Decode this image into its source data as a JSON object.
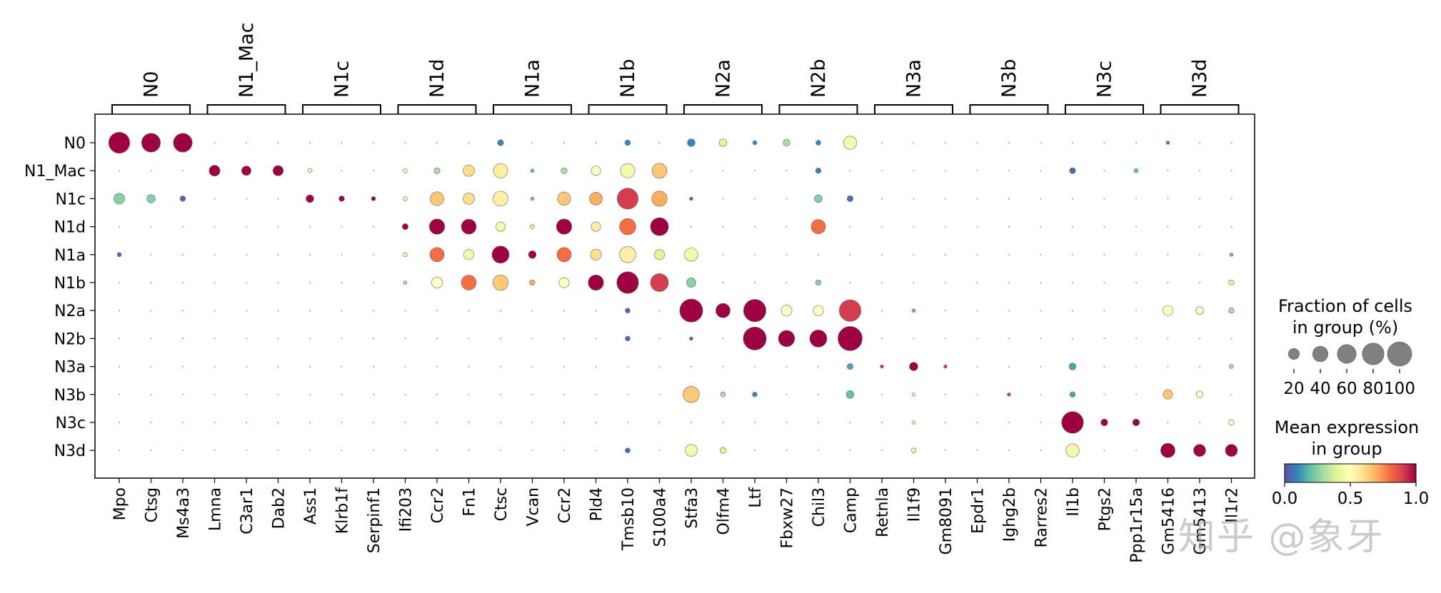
{
  "chart_data": {
    "type": "dotplot",
    "groups": [
      "N0",
      "N1_Mac",
      "N1c",
      "N1d",
      "N1a",
      "N1b",
      "N2a",
      "N2b",
      "N3a",
      "N3b",
      "N3c",
      "N3d"
    ],
    "genes": [
      "Mpo",
      "Ctsg",
      "Ms4a3",
      "Lmna",
      "C3ar1",
      "Dab2",
      "Ass1",
      "Klrb1f",
      "Serpinf1",
      "Ifi203",
      "Ccr2",
      "Fn1",
      "Ctsc",
      "Vcan",
      "Ccr2",
      "Pld4",
      "Tmsb10",
      "S100a4",
      "Stfa3",
      "Olfm4",
      "Ltf",
      "Fbxw27",
      "Chil3",
      "Camp",
      "Retnla",
      "Il1f9",
      "Gm8091",
      "Epdr1",
      "Ighg2b",
      "Rarres2",
      "Il1b",
      "Ptgs2",
      "Ppp1r15a",
      "Gm5416",
      "Gm5413",
      "Il1r2"
    ],
    "gene_blocks": [
      {
        "label": "N0",
        "start": 0,
        "end": 2
      },
      {
        "label": "N1_Mac",
        "start": 3,
        "end": 5
      },
      {
        "label": "N1c",
        "start": 6,
        "end": 8
      },
      {
        "label": "N1d",
        "start": 9,
        "end": 11
      },
      {
        "label": "N1a",
        "start": 12,
        "end": 14
      },
      {
        "label": "N1b",
        "start": 15,
        "end": 17
      },
      {
        "label": "N2a",
        "start": 18,
        "end": 20
      },
      {
        "label": "N2b",
        "start": 21,
        "end": 23
      },
      {
        "label": "N3a",
        "start": 24,
        "end": 26
      },
      {
        "label": "N3b",
        "start": 27,
        "end": 29
      },
      {
        "label": "N3c",
        "start": 30,
        "end": 32
      },
      {
        "label": "N3d",
        "start": 33,
        "end": 35
      }
    ],
    "points": [
      {
        "g": 0,
        "r": 0,
        "f": 75,
        "m": 1.0
      },
      {
        "g": 1,
        "r": 0,
        "f": 60,
        "m": 1.0
      },
      {
        "g": 2,
        "r": 0,
        "f": 60,
        "m": 1.0
      },
      {
        "g": 12,
        "r": 0,
        "f": 6,
        "m": 0.1
      },
      {
        "g": 16,
        "r": 0,
        "f": 5,
        "m": 0.1
      },
      {
        "g": 18,
        "r": 0,
        "f": 10,
        "m": 0.1
      },
      {
        "g": 19,
        "r": 0,
        "f": 10,
        "m": 0.4
      },
      {
        "g": 20,
        "r": 0,
        "f": 3,
        "m": 0.1
      },
      {
        "g": 21,
        "r": 0,
        "f": 8,
        "m": 0.3
      },
      {
        "g": 22,
        "r": 0,
        "f": 4,
        "m": 0.1
      },
      {
        "g": 23,
        "r": 0,
        "f": 30,
        "m": 0.45
      },
      {
        "g": 33,
        "r": 0,
        "f": 2,
        "m": 0.1
      },
      {
        "g": 3,
        "r": 1,
        "f": 20,
        "m": 1.0
      },
      {
        "g": 4,
        "r": 1,
        "f": 15,
        "m": 1.0
      },
      {
        "g": 5,
        "r": 1,
        "f": 18,
        "m": 1.0
      },
      {
        "g": 6,
        "r": 1,
        "f": 3,
        "m": 0.45
      },
      {
        "g": 9,
        "r": 1,
        "f": 3,
        "m": 0.45
      },
      {
        "g": 10,
        "r": 1,
        "f": 6,
        "m": 0.3
      },
      {
        "g": 11,
        "r": 1,
        "f": 22,
        "m": 0.6
      },
      {
        "g": 12,
        "r": 1,
        "f": 35,
        "m": 0.55
      },
      {
        "g": 13,
        "r": 1,
        "f": 2,
        "m": 0.2
      },
      {
        "g": 14,
        "r": 1,
        "f": 6,
        "m": 0.3
      },
      {
        "g": 15,
        "r": 1,
        "f": 15,
        "m": 0.5
      },
      {
        "g": 16,
        "r": 1,
        "f": 35,
        "m": 0.45
      },
      {
        "g": 17,
        "r": 1,
        "f": 38,
        "m": 0.65
      },
      {
        "g": 22,
        "r": 1,
        "f": 5,
        "m": 0.1
      },
      {
        "g": 30,
        "r": 1,
        "f": 6,
        "m": 0.05
      },
      {
        "g": 32,
        "r": 1,
        "f": 3,
        "m": 0.2
      },
      {
        "g": 0,
        "r": 2,
        "f": 20,
        "m": 0.25
      },
      {
        "g": 1,
        "r": 2,
        "f": 12,
        "m": 0.25
      },
      {
        "g": 2,
        "r": 2,
        "f": 5,
        "m": 0.05
      },
      {
        "g": 6,
        "r": 2,
        "f": 10,
        "m": 1.0
      },
      {
        "g": 7,
        "r": 2,
        "f": 5,
        "m": 1.0
      },
      {
        "g": 8,
        "r": 2,
        "f": 3,
        "m": 1.0
      },
      {
        "g": 9,
        "r": 2,
        "f": 3,
        "m": 0.45
      },
      {
        "g": 10,
        "r": 2,
        "f": 32,
        "m": 0.65
      },
      {
        "g": 11,
        "r": 2,
        "f": 22,
        "m": 0.6
      },
      {
        "g": 12,
        "r": 2,
        "f": 38,
        "m": 0.55
      },
      {
        "g": 13,
        "r": 2,
        "f": 2,
        "m": 0.2
      },
      {
        "g": 14,
        "r": 2,
        "f": 30,
        "m": 0.65
      },
      {
        "g": 15,
        "r": 2,
        "f": 28,
        "m": 0.7
      },
      {
        "g": 16,
        "r": 2,
        "f": 75,
        "m": 0.9
      },
      {
        "g": 17,
        "r": 2,
        "f": 40,
        "m": 0.7
      },
      {
        "g": 18,
        "r": 2,
        "f": 2,
        "m": 0.05
      },
      {
        "g": 22,
        "r": 2,
        "f": 10,
        "m": 0.25
      },
      {
        "g": 23,
        "r": 2,
        "f": 6,
        "m": 0.05
      },
      {
        "g": 9,
        "r": 3,
        "f": 6,
        "m": 1.0
      },
      {
        "g": 10,
        "r": 3,
        "f": 40,
        "m": 1.0
      },
      {
        "g": 11,
        "r": 3,
        "f": 38,
        "m": 1.0
      },
      {
        "g": 12,
        "r": 3,
        "f": 15,
        "m": 0.45
      },
      {
        "g": 13,
        "r": 3,
        "f": 3,
        "m": 0.4
      },
      {
        "g": 14,
        "r": 3,
        "f": 40,
        "m": 1.0
      },
      {
        "g": 15,
        "r": 3,
        "f": 15,
        "m": 0.55
      },
      {
        "g": 16,
        "r": 3,
        "f": 45,
        "m": 0.8
      },
      {
        "g": 17,
        "r": 3,
        "f": 55,
        "m": 1.0
      },
      {
        "g": 22,
        "r": 3,
        "f": 35,
        "m": 0.8
      },
      {
        "g": 0,
        "r": 4,
        "f": 3,
        "m": 0.05
      },
      {
        "g": 9,
        "r": 4,
        "f": 3,
        "m": 0.45
      },
      {
        "g": 10,
        "r": 4,
        "f": 35,
        "m": 0.8
      },
      {
        "g": 11,
        "r": 4,
        "f": 18,
        "m": 0.45
      },
      {
        "g": 12,
        "r": 4,
        "f": 50,
        "m": 1.0
      },
      {
        "g": 13,
        "r": 4,
        "f": 10,
        "m": 1.0
      },
      {
        "g": 14,
        "r": 4,
        "f": 35,
        "m": 0.8
      },
      {
        "g": 15,
        "r": 4,
        "f": 20,
        "m": 0.6
      },
      {
        "g": 16,
        "r": 4,
        "f": 45,
        "m": 0.55
      },
      {
        "g": 17,
        "r": 4,
        "f": 18,
        "m": 0.4
      },
      {
        "g": 18,
        "r": 4,
        "f": 30,
        "m": 0.45
      },
      {
        "g": 35,
        "r": 4,
        "f": 2,
        "m": 0.2
      },
      {
        "g": 9,
        "r": 5,
        "f": 2,
        "m": 0.3
      },
      {
        "g": 10,
        "r": 5,
        "f": 20,
        "m": 0.5
      },
      {
        "g": 11,
        "r": 5,
        "f": 38,
        "m": 0.8
      },
      {
        "g": 12,
        "r": 5,
        "f": 40,
        "m": 0.65
      },
      {
        "g": 13,
        "r": 5,
        "f": 5,
        "m": 0.7
      },
      {
        "g": 14,
        "r": 5,
        "f": 18,
        "m": 0.5
      },
      {
        "g": 15,
        "r": 5,
        "f": 40,
        "m": 1.0
      },
      {
        "g": 16,
        "r": 5,
        "f": 80,
        "m": 1.0
      },
      {
        "g": 17,
        "r": 5,
        "f": 55,
        "m": 0.9
      },
      {
        "g": 18,
        "r": 5,
        "f": 15,
        "m": 0.25
      },
      {
        "g": 22,
        "r": 5,
        "f": 5,
        "m": 0.25
      },
      {
        "g": 35,
        "r": 5,
        "f": 5,
        "m": 0.4
      },
      {
        "g": 18,
        "r": 6,
        "f": 90,
        "m": 1.0
      },
      {
        "g": 19,
        "r": 6,
        "f": 35,
        "m": 1.0
      },
      {
        "g": 20,
        "r": 6,
        "f": 85,
        "m": 1.0
      },
      {
        "g": 21,
        "r": 6,
        "f": 20,
        "m": 0.5
      },
      {
        "g": 22,
        "r": 6,
        "f": 18,
        "m": 0.5
      },
      {
        "g": 23,
        "r": 6,
        "f": 80,
        "m": 0.9
      },
      {
        "g": 16,
        "r": 6,
        "f": 4,
        "m": 0.05
      },
      {
        "g": 33,
        "r": 6,
        "f": 18,
        "m": 0.5
      },
      {
        "g": 34,
        "r": 6,
        "f": 10,
        "m": 0.5
      },
      {
        "g": 35,
        "r": 6,
        "f": 5,
        "m": 0.3
      },
      {
        "g": 25,
        "r": 6,
        "f": 2,
        "m": 0.2
      },
      {
        "g": 20,
        "r": 7,
        "f": 90,
        "m": 1.0
      },
      {
        "g": 21,
        "r": 7,
        "f": 45,
        "m": 1.0
      },
      {
        "g": 22,
        "r": 7,
        "f": 50,
        "m": 1.0
      },
      {
        "g": 23,
        "r": 7,
        "f": 100,
        "m": 1.0
      },
      {
        "g": 16,
        "r": 7,
        "f": 4,
        "m": 0.05
      },
      {
        "g": 18,
        "r": 7,
        "f": 2,
        "m": 0.05
      },
      {
        "g": 24,
        "r": 8,
        "f": 2,
        "m": 0.9
      },
      {
        "g": 25,
        "r": 8,
        "f": 12,
        "m": 1.0
      },
      {
        "g": 26,
        "r": 8,
        "f": 2,
        "m": 0.9
      },
      {
        "g": 23,
        "r": 8,
        "f": 6,
        "m": 0.15
      },
      {
        "g": 30,
        "r": 8,
        "f": 8,
        "m": 0.15
      },
      {
        "g": 35,
        "r": 8,
        "f": 3,
        "m": 0.3
      },
      {
        "g": 18,
        "r": 9,
        "f": 45,
        "m": 0.65
      },
      {
        "g": 19,
        "r": 9,
        "f": 4,
        "m": 0.3
      },
      {
        "g": 20,
        "r": 9,
        "f": 4,
        "m": 0.1
      },
      {
        "g": 23,
        "r": 9,
        "f": 10,
        "m": 0.2
      },
      {
        "g": 28,
        "r": 9,
        "f": 2,
        "m": 0.9
      },
      {
        "g": 30,
        "r": 9,
        "f": 5,
        "m": 0.15
      },
      {
        "g": 33,
        "r": 9,
        "f": 15,
        "m": 0.65
      },
      {
        "g": 34,
        "r": 9,
        "f": 8,
        "m": 0.5
      },
      {
        "g": 25,
        "r": 9,
        "f": 2,
        "m": 0.45
      },
      {
        "g": 30,
        "r": 10,
        "f": 80,
        "m": 1.0
      },
      {
        "g": 31,
        "r": 10,
        "f": 8,
        "m": 1.0
      },
      {
        "g": 32,
        "r": 10,
        "f": 8,
        "m": 1.0
      },
      {
        "g": 35,
        "r": 10,
        "f": 5,
        "m": 0.5
      },
      {
        "g": 25,
        "r": 10,
        "f": 2,
        "m": 0.55
      },
      {
        "g": 33,
        "r": 11,
        "f": 35,
        "m": 1.0
      },
      {
        "g": 34,
        "r": 11,
        "f": 25,
        "m": 1.0
      },
      {
        "g": 35,
        "r": 11,
        "f": 25,
        "m": 1.0
      },
      {
        "g": 30,
        "r": 11,
        "f": 30,
        "m": 0.45
      },
      {
        "g": 18,
        "r": 11,
        "f": 25,
        "m": 0.45
      },
      {
        "g": 19,
        "r": 11,
        "f": 6,
        "m": 0.4
      },
      {
        "g": 25,
        "r": 11,
        "f": 4,
        "m": 0.45
      },
      {
        "g": 16,
        "r": 11,
        "f": 4,
        "m": 0.05
      }
    ],
    "size_legend": {
      "title": "Fraction of cells\nin group (%)",
      "values": [
        20,
        40,
        60,
        80,
        100
      ],
      "labels": [
        "20",
        "40",
        "60",
        "80",
        "100"
      ]
    },
    "color_legend": {
      "title": "Mean expression\nin group",
      "range": [
        0.0,
        1.0
      ],
      "ticks": [
        "0.0",
        "0.5",
        "1.0"
      ],
      "colormap": "Spectral_r"
    },
    "colors": {
      "stops": [
        "#5e4fa2",
        "#3288bd",
        "#66c2a5",
        "#abdda4",
        "#e6f598",
        "#ffffbf",
        "#fee08b",
        "#fdae61",
        "#f46d43",
        "#d53e4f",
        "#9e0142"
      ],
      "dot_edge": "#666666",
      "axis": "#000000"
    }
  },
  "watermark": "知乎 @象牙"
}
